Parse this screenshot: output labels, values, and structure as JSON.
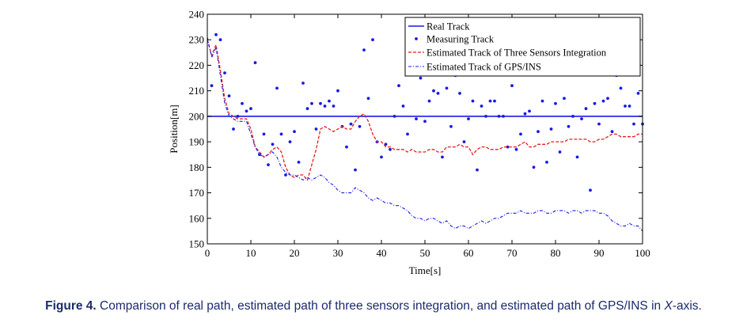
{
  "caption": {
    "lead": "Figure 4.",
    "text_before": " Comparison of real path, estimated path of three sensors integration, and estimated path of GPS/INS in ",
    "axis_var": "X",
    "text_after": "-axis."
  },
  "chart_data": {
    "type": "line",
    "title": "",
    "xlabel": "Time[s]",
    "ylabel": "Position[m]",
    "xlim": [
      0,
      100
    ],
    "ylim": [
      150,
      240
    ],
    "xticks": [
      "0",
      "10",
      "20",
      "30",
      "40",
      "50",
      "60",
      "70",
      "80",
      "90",
      "100"
    ],
    "yticks": [
      "150",
      "160",
      "170",
      "180",
      "190",
      "200",
      "210",
      "220",
      "230",
      "240"
    ],
    "grid": false,
    "legend_position": "top-right",
    "colors": {
      "series": "#1a1ae6",
      "estimated_three": "#e61e1e"
    },
    "series": [
      {
        "name": "Real Track",
        "style": "solid",
        "x": [
          0,
          100
        ],
        "y": [
          200,
          200
        ]
      },
      {
        "name": "Measuring Track",
        "style": "markers",
        "x": [
          1,
          2,
          3,
          4,
          5,
          6,
          7,
          8,
          9,
          10,
          11,
          12,
          13,
          14,
          15,
          16,
          17,
          18,
          19,
          20,
          21,
          22,
          23,
          24,
          25,
          26,
          27,
          28,
          29,
          30,
          31,
          32,
          33,
          34,
          35,
          36,
          37,
          38,
          39,
          40,
          41,
          42,
          43,
          44,
          45,
          46,
          47,
          48,
          49,
          50,
          51,
          52,
          53,
          54,
          55,
          56,
          57,
          58,
          59,
          60,
          61,
          62,
          63,
          64,
          65,
          66,
          67,
          68,
          69,
          70,
          71,
          72,
          73,
          74,
          75,
          76,
          77,
          78,
          79,
          80,
          81,
          82,
          83,
          84,
          85,
          86,
          87,
          88,
          89,
          90,
          91,
          92,
          93,
          94,
          95,
          96,
          97,
          98,
          99,
          100
        ],
        "y": [
          212,
          232,
          230,
          217,
          208,
          195,
          200,
          205,
          202,
          203,
          221,
          185,
          193,
          181,
          189,
          211,
          193,
          177,
          190,
          194,
          182,
          213,
          203,
          205,
          195,
          205,
          204,
          206,
          204,
          210,
          196,
          188,
          197,
          179,
          196,
          226,
          207,
          230,
          190,
          184,
          189,
          187,
          200,
          212,
          204,
          193,
          220,
          199,
          215,
          198,
          206,
          210,
          209,
          184,
          211,
          196,
          216,
          209,
          190,
          199,
          206,
          179,
          204,
          200,
          206,
          206,
          200,
          200,
          188,
          212,
          187,
          193,
          201,
          202,
          180,
          194,
          206,
          182,
          195,
          205,
          186,
          207,
          196,
          200,
          184,
          199,
          203,
          171,
          205,
          197,
          206,
          207,
          194,
          216,
          211,
          204,
          204,
          197,
          209,
          197
        ]
      },
      {
        "name": "Estimated Track of Three Sensors Integration",
        "style": "dashed",
        "x": [
          0,
          1,
          2,
          3,
          4,
          5,
          6,
          7,
          8,
          9,
          10,
          11,
          12,
          13,
          14,
          15,
          16,
          17,
          18,
          19,
          20,
          21,
          22,
          23,
          24,
          25,
          26,
          27,
          28,
          29,
          30,
          31,
          32,
          33,
          34,
          35,
          36,
          37,
          38,
          39,
          40,
          41,
          42,
          43,
          44,
          45,
          46,
          47,
          48,
          49,
          50,
          51,
          52,
          53,
          54,
          55,
          56,
          57,
          58,
          59,
          60,
          61,
          62,
          63,
          64,
          65,
          66,
          67,
          68,
          69,
          70,
          71,
          72,
          73,
          74,
          75,
          76,
          77,
          78,
          79,
          80,
          81,
          82,
          83,
          84,
          85,
          86,
          87,
          88,
          89,
          90,
          91,
          92,
          93,
          94,
          95,
          96,
          97,
          98,
          99,
          100
        ],
        "y": [
          230,
          224,
          228,
          218,
          207,
          201,
          200,
          199,
          199,
          199,
          195,
          188,
          186,
          184,
          185,
          187,
          188,
          186,
          180,
          177,
          176,
          177,
          177,
          175,
          181,
          187,
          195,
          196,
          195,
          194,
          195,
          196,
          195,
          195,
          198,
          200,
          201,
          198,
          193,
          190,
          190,
          188,
          188,
          187,
          187,
          187,
          186,
          187,
          186,
          186,
          186,
          187,
          187,
          186,
          186,
          188,
          188,
          188,
          189,
          188,
          188,
          185,
          187,
          188,
          188,
          187,
          187,
          187,
          188,
          188,
          188,
          188,
          189,
          190,
          188,
          188,
          189,
          189,
          189,
          190,
          190,
          190,
          190,
          191,
          191,
          191,
          191,
          191,
          190,
          190,
          191,
          191,
          192,
          193,
          193,
          192,
          192,
          192,
          192,
          193,
          193
        ]
      },
      {
        "name": "Estimated Track of GPS/INS",
        "style": "dashdot",
        "x": [
          0,
          1,
          2,
          3,
          4,
          5,
          6,
          7,
          8,
          9,
          10,
          11,
          12,
          13,
          14,
          15,
          16,
          17,
          18,
          19,
          20,
          21,
          22,
          23,
          24,
          25,
          26,
          27,
          28,
          29,
          30,
          31,
          32,
          33,
          34,
          35,
          36,
          37,
          38,
          39,
          40,
          41,
          42,
          43,
          44,
          45,
          46,
          47,
          48,
          49,
          50,
          51,
          52,
          53,
          54,
          55,
          56,
          57,
          58,
          59,
          60,
          61,
          62,
          63,
          64,
          65,
          66,
          67,
          68,
          69,
          70,
          71,
          72,
          73,
          74,
          75,
          76,
          77,
          78,
          79,
          80,
          81,
          82,
          83,
          84,
          85,
          86,
          87,
          88,
          89,
          90,
          91,
          92,
          93,
          94,
          95,
          96,
          97,
          98,
          99,
          100
        ],
        "y": [
          231,
          223,
          227,
          216,
          205,
          200,
          199,
          198,
          198,
          198,
          193,
          188,
          185,
          184,
          185,
          186,
          184,
          180,
          178,
          177,
          177,
          176,
          175,
          176,
          175,
          176,
          177,
          176,
          174,
          173,
          171,
          170,
          170,
          170,
          172,
          171,
          170,
          168,
          167,
          168,
          167,
          166,
          166,
          165,
          165,
          164,
          163,
          161,
          160,
          160,
          159,
          160,
          160,
          159,
          158,
          159,
          157,
          156,
          157,
          157,
          156,
          157,
          158,
          159,
          158,
          159,
          160,
          160,
          161,
          162,
          162,
          162,
          163,
          162,
          162,
          162,
          163,
          163,
          162,
          162,
          163,
          163,
          163,
          162,
          163,
          163,
          162,
          163,
          163,
          163,
          162,
          162,
          161,
          159,
          158,
          157,
          157,
          158,
          157,
          157,
          155
        ]
      }
    ]
  }
}
